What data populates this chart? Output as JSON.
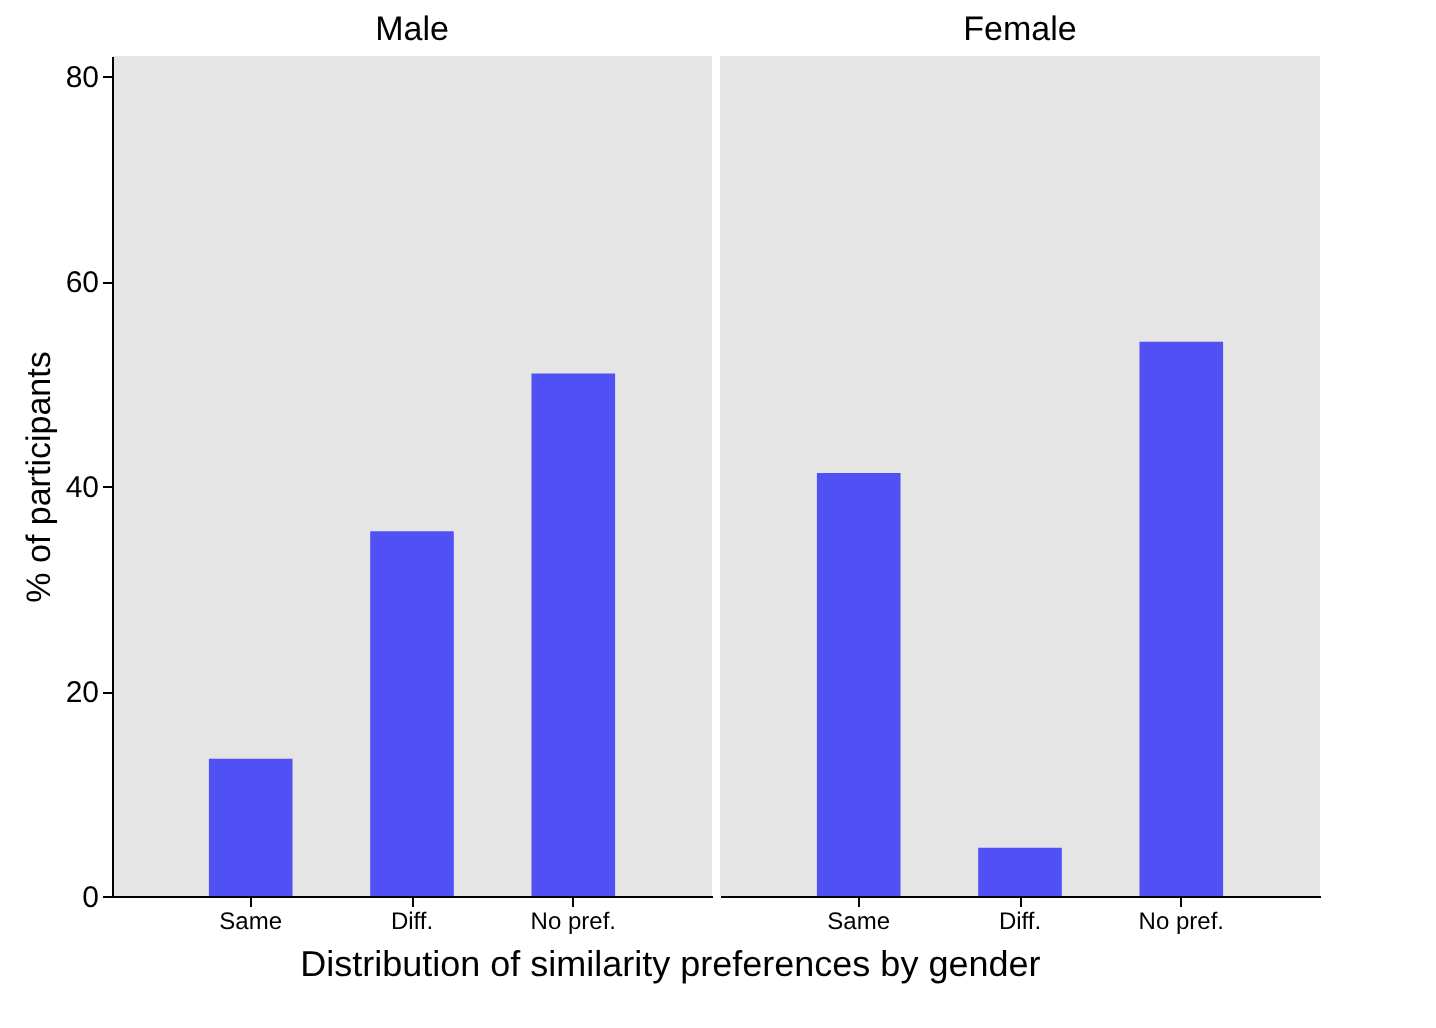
{
  "chart_data": [
    {
      "type": "bar",
      "title": "Male",
      "ylabel": "% of participants",
      "xlabel": "Distribution of similarity preferences by gender",
      "categories": [
        "Same",
        "Diff.",
        "No pref."
      ],
      "values": [
        13.4,
        35.6,
        51.0
      ],
      "color": "#5050f5",
      "ylim": [
        0,
        82
      ],
      "yticks": [
        0,
        20,
        40,
        60,
        80
      ]
    },
    {
      "type": "bar",
      "title": "Female",
      "categories": [
        "Same",
        "Diff.",
        "No pref."
      ],
      "values": [
        41.3,
        4.7,
        54.1
      ],
      "color": "#5050f5",
      "ylim": [
        0,
        82
      ],
      "yticks": [
        0,
        20,
        40,
        60,
        80
      ],
      "tick_labels": "x"
    }
  ]
}
